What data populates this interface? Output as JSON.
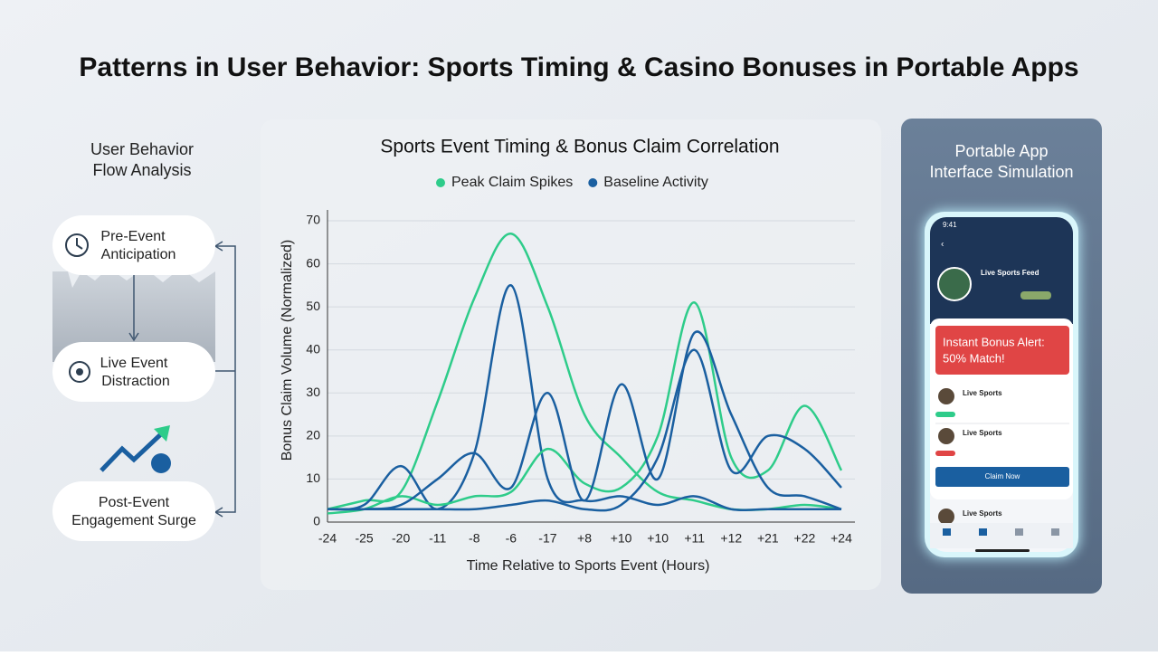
{
  "header": {
    "title": "Patterns in User Behavior: Sports Timing & Casino Bonuses in Portable Apps"
  },
  "flow": {
    "title": [
      "User Behavior",
      "Flow Analysis"
    ],
    "nodes": [
      {
        "label": [
          "Pre-Event",
          "Anticipation"
        ]
      },
      {
        "label": [
          "Live Event",
          "Distraction"
        ]
      },
      {
        "label": [
          "Post-Event",
          "Engagement Surge"
        ]
      }
    ]
  },
  "chart_data": {
    "type": "line",
    "title": "Sports Event Timing & Bonus Claim Correlation",
    "x_label": "Time Relative to Sports Event (Hours)",
    "y_label": "Bonus Claim Volume (Normalized)",
    "categories": [
      "-24",
      "-25",
      "-20",
      "-11",
      "-8",
      "-6",
      "-17",
      "+8",
      "+10",
      "+10",
      "+11",
      "+12",
      "+21",
      "+22",
      "+24"
    ],
    "ylim": [
      0,
      70
    ],
    "yticks": [
      0,
      10,
      20,
      30,
      40,
      50,
      60,
      70
    ],
    "grid": true,
    "series": [
      {
        "name": "Peak Claim Spikes",
        "color": "#2ecc8a",
        "values": [
          3,
          5,
          7,
          28,
          52,
          67,
          50,
          25,
          15,
          7,
          5,
          3,
          3,
          4,
          3
        ]
      },
      {
        "name": "Baseline Activity",
        "color": "#1a5fa0",
        "values": [
          3,
          4,
          13,
          3,
          16,
          55,
          10,
          5,
          6,
          4,
          6,
          3,
          3,
          3,
          3
        ]
      },
      {
        "color": "#2ecc8a",
        "values": [
          2,
          3,
          6,
          4,
          6,
          7,
          17,
          9,
          8,
          20,
          51,
          15,
          12,
          27,
          12
        ]
      },
      {
        "color": "#1a5fa0",
        "values": [
          3,
          3,
          4,
          10,
          16,
          8,
          30,
          5,
          32,
          10,
          44,
          25,
          8,
          6,
          3
        ]
      },
      {
        "color": "#1a5fa0",
        "values": [
          3,
          3,
          3,
          3,
          3,
          4,
          5,
          3,
          4,
          15,
          40,
          12,
          20,
          17,
          8
        ]
      }
    ]
  },
  "phone": {
    "title": [
      "Portable App",
      "Interface Simulation"
    ],
    "time": "9:41",
    "feed": "Live Sports Feed",
    "alert": [
      "Instant Bonus Alert:",
      "50% Match!"
    ],
    "items": [
      "Live Sports",
      "Live Sports"
    ],
    "button": "Claim Now",
    "footer_item": "Live Sports"
  }
}
